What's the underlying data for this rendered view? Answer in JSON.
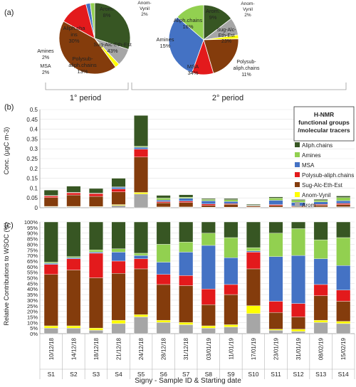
{
  "panel_labels": [
    "(a)",
    "(b)",
    "(c)"
  ],
  "period_labels": [
    "1° period",
    "2° period"
  ],
  "legend": {
    "title": "H-NMR functional groups /molecular tracers",
    "items": [
      {
        "label": "Aliph.chains",
        "color": "#375623"
      },
      {
        "label": "Amines",
        "color": "#92d050"
      },
      {
        "label": "MSA",
        "color": "#4472c4"
      },
      {
        "label": "Polysub-aliph.chains",
        "color": "#e31a1c"
      },
      {
        "label": "Sug-Alc-Eth-Est",
        "color": "#843c0c"
      },
      {
        "label": "Anom-Vynil",
        "color": "#ffff00"
      },
      {
        "label": "Arom",
        "color": "#a6a6a6"
      }
    ]
  },
  "pie_labels": {
    "pie1": [
      "Aliph.cha ins 30%",
      "Arom. 8%",
      "Anom- Vynil 2%",
      "Sug-Alc-Eth-Est 43%",
      "Polysub- aliph.chains 13%",
      "Amines 2%",
      "MSA 2%"
    ],
    "pie2": [
      "Aliph.chains 16%",
      "Arom. 9%",
      "Anom- Vynil 2%",
      "Sug-Alc- Eth-Est 23%",
      "Polysub- aliph.chains 11%",
      "MSA 34%",
      "Amines 15%"
    ]
  },
  "chart_data": [
    {
      "type": "pie",
      "panel": "(a)",
      "period": "1° period",
      "slices": [
        {
          "name": "Aliph.chains",
          "value": 30
        },
        {
          "name": "Arom",
          "value": 8
        },
        {
          "name": "Anom-Vynil",
          "value": 2
        },
        {
          "name": "Sug-Alc-Eth-Est",
          "value": 43
        },
        {
          "name": "Polysub-aliph.chains",
          "value": 13
        },
        {
          "name": "MSA",
          "value": 2
        },
        {
          "name": "Amines",
          "value": 2
        }
      ]
    },
    {
      "type": "pie",
      "panel": "(a)",
      "period": "2° period",
      "slices": [
        {
          "name": "Aliph.chains",
          "value": 16
        },
        {
          "name": "Arom",
          "value": 9
        },
        {
          "name": "Anom-Vynil",
          "value": 2
        },
        {
          "name": "Sug-Alc-Eth-Est",
          "value": 23
        },
        {
          "name": "Polysub-aliph.chains",
          "value": 11
        },
        {
          "name": "MSA",
          "value": 34
        },
        {
          "name": "Amines",
          "value": 15
        }
      ]
    },
    {
      "type": "bar",
      "stacked": true,
      "panel": "(b)",
      "ylabel": "Conc. (µgC m-3)",
      "ylim": [
        0,
        0.5
      ],
      "yticks": [
        "0",
        "0.05",
        "0.1",
        "0.15",
        "0.2",
        "0.25",
        "0.3",
        "0.35",
        "0.4",
        "0.45",
        "0.5"
      ],
      "grid": true,
      "categories": [
        "S1",
        "S2",
        "S3",
        "S4",
        "S5",
        "S6",
        "S7",
        "S8",
        "S9",
        "S10",
        "S11",
        "S12",
        "S13",
        "S14"
      ],
      "series": [
        {
          "name": "Arom",
          "values": [
            0.005,
            0.005,
            0.004,
            0.012,
            0.07,
            0.003,
            0.003,
            0.002,
            0.002,
            0.002,
            0.002,
            0.001,
            0.003,
            0.004
          ]
        },
        {
          "name": "Anom-Vynil",
          "values": [
            0.002,
            0.002,
            0.002,
            0.004,
            0.008,
            0.001,
            0.001,
            0.001,
            0.001,
            0.001,
            0.001,
            0.001,
            0.001,
            0.001
          ]
        },
        {
          "name": "Sug-Alc-Eth-Est",
          "values": [
            0.045,
            0.058,
            0.052,
            0.065,
            0.18,
            0.021,
            0.023,
            0.009,
            0.014,
            0.005,
            0.008,
            0.004,
            0.009,
            0.011
          ]
        },
        {
          "name": "Polysub-aliph.chains",
          "values": [
            0.008,
            0.011,
            0.014,
            0.014,
            0.04,
            0.006,
            0.007,
            0.007,
            0.004,
            0.002,
            0.005,
            0.003,
            0.004,
            0.006
          ]
        },
        {
          "name": "MSA",
          "values": [
            0.001,
            0.001,
            0.001,
            0.009,
            0.01,
            0.008,
            0.014,
            0.016,
            0.011,
            0.001,
            0.022,
            0.018,
            0.013,
            0.014
          ]
        },
        {
          "name": "Amines",
          "values": [
            0.001,
            0.001,
            0.001,
            0.002,
            0.005,
            0.01,
            0.005,
            0.007,
            0.009,
            0.001,
            0.011,
            0.01,
            0.007,
            0.016
          ]
        },
        {
          "name": "Aliph.chains",
          "values": [
            0.028,
            0.032,
            0.024,
            0.044,
            0.157,
            0.014,
            0.013,
            0.005,
            0.006,
            0.005,
            0.006,
            0.005,
            0.006,
            0.008
          ]
        }
      ]
    },
    {
      "type": "bar",
      "stacked": true,
      "panel": "(c)",
      "ylabel": "Relative Contributions to WSOC (%)",
      "xlabel": "Signy - Sample ID & Starting date",
      "ylim": [
        0,
        100
      ],
      "yticks": [
        "0%",
        "5%",
        "10%",
        "15%",
        "20%",
        "25%",
        "30%",
        "35%",
        "40%",
        "45%",
        "50%",
        "55%",
        "60%",
        "65%",
        "70%",
        "75%",
        "80%",
        "85%",
        "90%",
        "95%",
        "100%"
      ],
      "grid": true,
      "categories": [
        "S1",
        "S2",
        "S3",
        "S4",
        "S5",
        "S6",
        "S7",
        "S8",
        "S9",
        "S10",
        "S11",
        "S12",
        "S13",
        "S14"
      ],
      "dates": [
        "10/12/18",
        "14/12/18",
        "18/12/18",
        "21/12/18",
        "24/12/18",
        "28/12/18",
        "31/12/18",
        "03/01/19",
        "11/01/19",
        "17/01/19",
        "23/01/19",
        "31/01/19",
        "08/02/19",
        "15/02/19"
      ],
      "series": [
        {
          "name": "Arom",
          "values": [
            5,
            5,
            3,
            9,
            15,
            10,
            8,
            5,
            6,
            18,
            3,
            2,
            10,
            9
          ]
        },
        {
          "name": "Anom-Vynil",
          "values": [
            2,
            2,
            2,
            3,
            2,
            2,
            2,
            2,
            2,
            7,
            1,
            2,
            2,
            2
          ]
        },
        {
          "name": "Sug-Alc-Eth-Est",
          "values": [
            46,
            50,
            45,
            42,
            41,
            32,
            33,
            19,
            27,
            33,
            15,
            11,
            22,
            18
          ]
        },
        {
          "name": "Polysub-aliph.chains",
          "values": [
            9,
            10,
            22,
            11,
            9,
            9,
            9,
            14,
            9,
            15,
            10,
            12,
            10,
            10
          ]
        },
        {
          "name": "MSA",
          "values": [
            1,
            1,
            1,
            8,
            3,
            11,
            21,
            39,
            24,
            1,
            40,
            43,
            23,
            22
          ]
        },
        {
          "name": "Amines",
          "values": [
            1,
            1,
            2,
            3,
            2,
            16,
            9,
            11,
            18,
            3,
            21,
            24,
            17,
            25
          ]
        },
        {
          "name": "Aliph.chains",
          "values": [
            36,
            31,
            25,
            24,
            28,
            20,
            18,
            10,
            14,
            23,
            10,
            6,
            16,
            14
          ]
        }
      ]
    }
  ]
}
